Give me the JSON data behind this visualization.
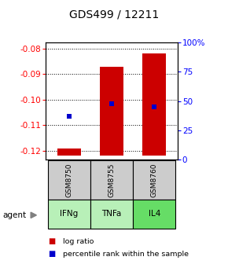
{
  "title": "GDS499 / 12211",
  "samples": [
    "GSM8750",
    "GSM8755",
    "GSM8760"
  ],
  "agents": [
    "IFNg",
    "TNFa",
    "IL4"
  ],
  "log_ratios": [
    -0.119,
    -0.087,
    -0.082
  ],
  "log_ratio_base": -0.122,
  "percentile_ranks": [
    37,
    48,
    45
  ],
  "ylim_left": [
    -0.1235,
    -0.0775
  ],
  "ylim_right": [
    0,
    100
  ],
  "yticks_left": [
    -0.12,
    -0.11,
    -0.1,
    -0.09,
    -0.08
  ],
  "yticks_right": [
    0,
    25,
    50,
    75,
    100
  ],
  "bar_color": "#cc0000",
  "dot_color": "#0000cc",
  "agent_colors": [
    "#b8f0b8",
    "#b8f0b8",
    "#66dd66"
  ],
  "sample_bg_color": "#cccccc",
  "title_fontsize": 10,
  "tick_fontsize": 7.5,
  "bar_width": 0.55,
  "legend_square_size": 7
}
